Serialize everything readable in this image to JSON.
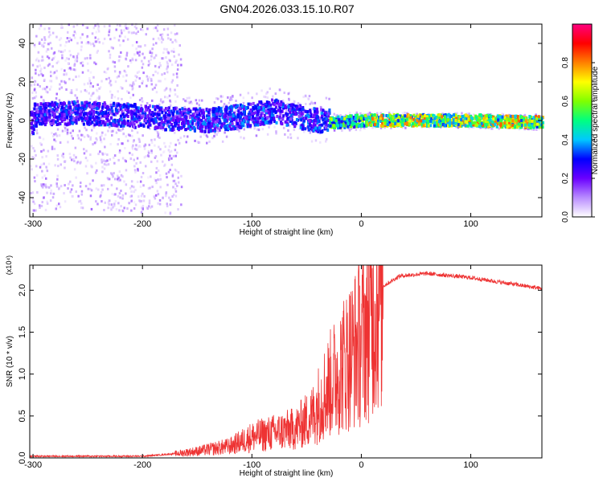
{
  "figure": {
    "title": "GN04.2026.033.15.10.R07"
  },
  "chart_data": [
    {
      "type": "heatmap",
      "xlabel": "Height of straight line (km)",
      "ylabel": "Frequency (Hz)",
      "xlim": [
        -303,
        165
      ],
      "ylim": [
        -50,
        50
      ],
      "xticks": [
        -300,
        -200,
        -100,
        0,
        100
      ],
      "yticks": [
        -40,
        -20,
        0,
        20,
        40
      ],
      "grid": false,
      "colorbar": {
        "label": "Normalized spectral amplitude",
        "range": [
          0,
          1
        ],
        "ticks": [
          "0.0",
          "0.2",
          "0.4",
          "0.6",
          "0.8"
        ],
        "tick_values": [
          0.0,
          0.2,
          0.4,
          0.6,
          0.8
        ],
        "colormap": [
          "#ffffff",
          "#b98cff",
          "#6a00ff",
          "#0000ff",
          "#00c8ff",
          "#00ff80",
          "#80ff00",
          "#ffff00",
          "#ff8000",
          "#ff0000",
          "#ff0080"
        ]
      },
      "frequency_centerline": [
        {
          "x": -300,
          "y": 3
        },
        {
          "x": -260,
          "y": 4
        },
        {
          "x": -220,
          "y": 3
        },
        {
          "x": -180,
          "y": 1
        },
        {
          "x": -140,
          "y": 0
        },
        {
          "x": -100,
          "y": 3
        },
        {
          "x": -80,
          "y": 5
        },
        {
          "x": -60,
          "y": 2
        },
        {
          "x": -40,
          "y": 0
        },
        {
          "x": -20,
          "y": -1
        },
        {
          "x": 0,
          "y": 0
        },
        {
          "x": 50,
          "y": 0
        },
        {
          "x": 100,
          "y": 0
        },
        {
          "x": 160,
          "y": -1
        }
      ],
      "intensity_regions": [
        {
          "x0": -303,
          "x1": -165,
          "band_halfwidth": 6,
          "amplitude": 0.3,
          "scatter_halfwidth": 50
        },
        {
          "x0": -165,
          "x1": -30,
          "band_halfwidth": 6,
          "amplitude": 0.32,
          "scatter_halfwidth": 12
        },
        {
          "x0": -30,
          "x1": 5,
          "band_halfwidth": 3,
          "amplitude": 0.55,
          "scatter_halfwidth": 5
        },
        {
          "x0": 5,
          "x1": 165,
          "band_halfwidth": 3,
          "amplitude": 0.7,
          "scatter_halfwidth": 4
        }
      ]
    },
    {
      "type": "line",
      "xlabel": "Height of straight line (km)",
      "ylabel": "SNR (10 * v/v)",
      "y_multiplier": "(x10⁴)",
      "xlim": [
        -303,
        165
      ],
      "ylim": [
        0,
        2.3
      ],
      "xticks": [
        -300,
        -200,
        -100,
        0,
        100
      ],
      "yticks": [
        "0.0",
        "0.5",
        "1.0",
        "1.5",
        "2.0"
      ],
      "ytick_values": [
        0,
        0.5,
        1.0,
        1.5,
        2.0
      ],
      "grid": false,
      "series": [
        {
          "color": "#ee3333",
          "points": [
            {
              "x": -303,
              "y": 0.02
            },
            {
              "x": -250,
              "y": 0.02
            },
            {
              "x": -200,
              "y": 0.02
            },
            {
              "x": -170,
              "y": 0.05
            },
            {
              "x": -150,
              "y": 0.08
            },
            {
              "x": -120,
              "y": 0.14
            },
            {
              "x": -100,
              "y": 0.25
            },
            {
              "x": -80,
              "y": 0.3
            },
            {
              "x": -60,
              "y": 0.35
            },
            {
              "x": -45,
              "y": 0.5
            },
            {
              "x": -35,
              "y": 0.75
            },
            {
              "x": -25,
              "y": 0.95
            },
            {
              "x": -15,
              "y": 1.15
            },
            {
              "x": 0,
              "y": 1.4
            },
            {
              "x": 10,
              "y": 1.75
            },
            {
              "x": 20,
              "y": 2.05
            },
            {
              "x": 35,
              "y": 2.17
            },
            {
              "x": 60,
              "y": 2.2
            },
            {
              "x": 100,
              "y": 2.15
            },
            {
              "x": 140,
              "y": 2.07
            },
            {
              "x": 165,
              "y": 2.02
            }
          ]
        }
      ]
    }
  ]
}
